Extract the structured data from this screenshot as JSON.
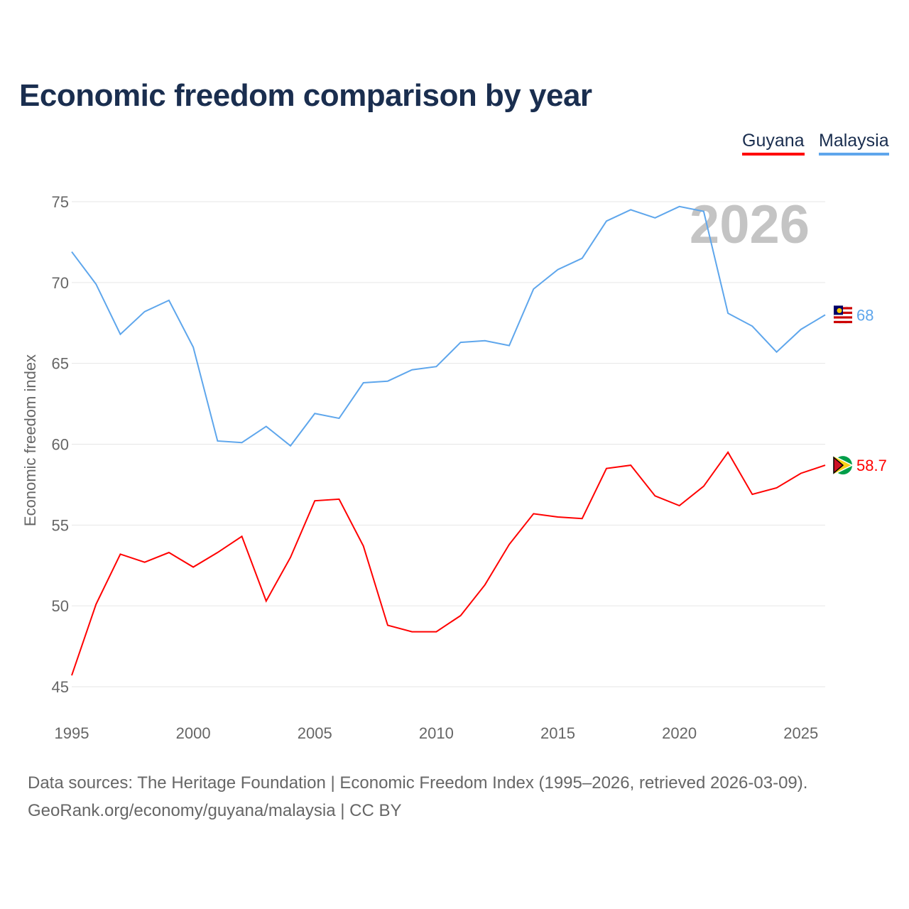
{
  "chart_data": {
    "type": "line",
    "title": "Economic freedom comparison by year",
    "xlabel": "",
    "ylabel": "Economic freedom index",
    "xlim": [
      1995,
      2026
    ],
    "ylim": [
      45,
      75
    ],
    "xticks": [
      "1995",
      "2000",
      "2005",
      "2010",
      "2015",
      "2020",
      "2025"
    ],
    "yticks": [
      "45",
      "50",
      "55",
      "60",
      "65",
      "70",
      "75"
    ],
    "grid": true,
    "legend_placement": "top-right",
    "watermark_year": "2026",
    "x": [
      1995,
      1996,
      1997,
      1998,
      1999,
      2000,
      2001,
      2002,
      2003,
      2004,
      2005,
      2006,
      2007,
      2008,
      2009,
      2010,
      2011,
      2012,
      2013,
      2014,
      2015,
      2016,
      2017,
      2018,
      2019,
      2020,
      2021,
      2022,
      2023,
      2024,
      2025,
      2026
    ],
    "series": [
      {
        "name": "Guyana",
        "color": "#ff0000",
        "end_label": "58.7",
        "values": [
          45.7,
          50.1,
          53.2,
          52.7,
          53.3,
          52.4,
          53.3,
          54.3,
          50.3,
          53.0,
          56.5,
          56.6,
          53.7,
          48.8,
          48.4,
          48.4,
          49.4,
          51.3,
          53.8,
          55.7,
          55.5,
          55.4,
          58.5,
          58.7,
          56.8,
          56.2,
          57.4,
          59.5,
          56.9,
          57.3,
          58.2,
          58.7
        ]
      },
      {
        "name": "Malaysia",
        "color": "#5ea6ec",
        "end_label": "68",
        "values": [
          71.9,
          69.9,
          66.8,
          68.2,
          68.9,
          66.0,
          60.2,
          60.1,
          61.1,
          59.9,
          61.9,
          61.6,
          63.8,
          63.9,
          64.6,
          64.8,
          66.3,
          66.4,
          66.1,
          69.6,
          70.8,
          71.5,
          73.8,
          74.5,
          74.0,
          74.7,
          74.4,
          68.1,
          67.3,
          65.7,
          67.1,
          68.0
        ]
      }
    ]
  },
  "source_line1": "Data sources: The Heritage Foundation | Economic Freedom Index (1995–2026, retrieved 2026-03-09).",
  "source_line2": "GeoRank.org/economy/guyana/malaysia | CC BY"
}
